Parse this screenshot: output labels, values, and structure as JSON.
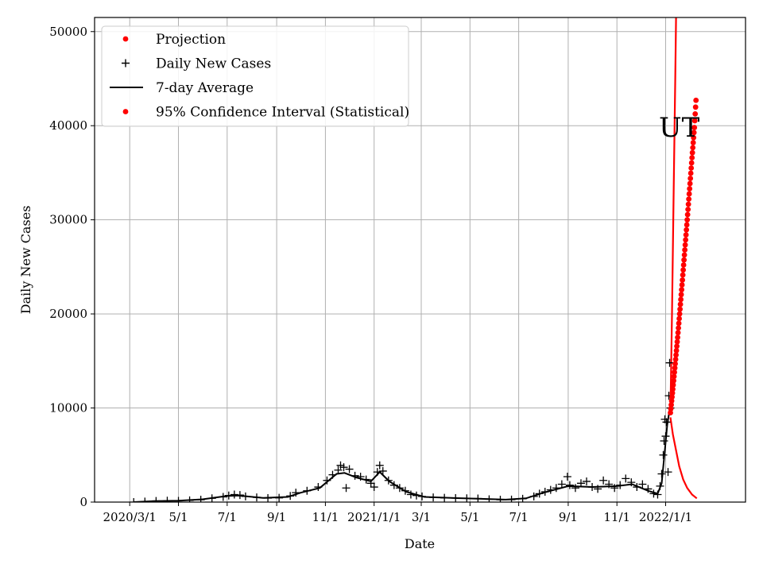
{
  "chart_data": {
    "type": "scatter",
    "title": "",
    "xlabel": "Date",
    "ylabel": "Daily New Cases",
    "xlim": [
      "2020-01-17",
      "2022-04-11"
    ],
    "ylim": [
      0,
      51500
    ],
    "grid": true,
    "legend_position": "top-left",
    "annotation": {
      "text": "UT",
      "x": "2022-01-02",
      "y": 40000
    },
    "x_ticks": [
      {
        "date": "2020-03-01",
        "label": "2020/3/1"
      },
      {
        "date": "2020-05-01",
        "label": "5/1"
      },
      {
        "date": "2020-07-01",
        "label": "7/1"
      },
      {
        "date": "2020-09-01",
        "label": "9/1"
      },
      {
        "date": "2020-11-01",
        "label": "11/1"
      },
      {
        "date": "2021-01-01",
        "label": "2021/1/1"
      },
      {
        "date": "2021-03-01",
        "label": "3/1"
      },
      {
        "date": "2021-05-01",
        "label": "5/1"
      },
      {
        "date": "2021-07-01",
        "label": "7/1"
      },
      {
        "date": "2021-09-01",
        "label": "9/1"
      },
      {
        "date": "2021-11-01",
        "label": "11/1"
      },
      {
        "date": "2022-01-01",
        "label": "2022/1/1"
      }
    ],
    "y_ticks": [
      {
        "value": 0,
        "label": "0"
      },
      {
        "value": 10000,
        "label": "10000"
      },
      {
        "value": 20000,
        "label": "20000"
      },
      {
        "value": 30000,
        "label": "30000"
      },
      {
        "value": 40000,
        "label": "40000"
      },
      {
        "value": 50000,
        "label": "50000"
      }
    ],
    "legend": [
      {
        "label": "Projection",
        "marker": "dot",
        "color": "#ff0000"
      },
      {
        "label": "Daily New Cases",
        "marker": "plus",
        "color": "#000000"
      },
      {
        "label": "7-day Average",
        "marker": "line",
        "color": "#000000"
      },
      {
        "label": "95% Confidence Interval (Statistical)",
        "marker": "dot",
        "color": "#ff0000"
      }
    ],
    "series": [
      {
        "name": "Daily New Cases",
        "style": "plus",
        "color": "#000000",
        "points": [
          [
            "2020-03-06",
            0
          ],
          [
            "2020-03-20",
            50
          ],
          [
            "2020-04-03",
            120
          ],
          [
            "2020-04-17",
            150
          ],
          [
            "2020-05-01",
            130
          ],
          [
            "2020-05-15",
            180
          ],
          [
            "2020-05-29",
            250
          ],
          [
            "2020-06-12",
            400
          ],
          [
            "2020-06-26",
            550
          ],
          [
            "2020-07-03",
            700
          ],
          [
            "2020-07-10",
            800
          ],
          [
            "2020-07-17",
            750
          ],
          [
            "2020-07-24",
            600
          ],
          [
            "2020-08-07",
            500
          ],
          [
            "2020-08-21",
            420
          ],
          [
            "2020-09-04",
            450
          ],
          [
            "2020-09-18",
            650
          ],
          [
            "2020-09-25",
            1000
          ],
          [
            "2020-10-09",
            1200
          ],
          [
            "2020-10-23",
            1600
          ],
          [
            "2020-11-03",
            2300
          ],
          [
            "2020-11-10",
            2900
          ],
          [
            "2020-11-17",
            3400
          ],
          [
            "2020-11-20",
            3900
          ],
          [
            "2020-11-24",
            3700
          ],
          [
            "2020-11-27",
            1500
          ],
          [
            "2020-12-01",
            3500
          ],
          [
            "2020-12-08",
            2800
          ],
          [
            "2020-12-15",
            2700
          ],
          [
            "2020-12-22",
            2400
          ],
          [
            "2020-12-28",
            2000
          ],
          [
            "2021-01-01",
            1600
          ],
          [
            "2021-01-05",
            3200
          ],
          [
            "2021-01-08",
            3900
          ],
          [
            "2021-01-12",
            3300
          ],
          [
            "2021-01-19",
            2300
          ],
          [
            "2021-01-26",
            1800
          ],
          [
            "2021-02-02",
            1500
          ],
          [
            "2021-02-09",
            1200
          ],
          [
            "2021-02-16",
            800
          ],
          [
            "2021-02-23",
            700
          ],
          [
            "2021-03-02",
            600
          ],
          [
            "2021-03-16",
            500
          ],
          [
            "2021-03-30",
            450
          ],
          [
            "2021-04-13",
            420
          ],
          [
            "2021-04-27",
            400
          ],
          [
            "2021-05-11",
            380
          ],
          [
            "2021-05-25",
            300
          ],
          [
            "2021-06-08",
            250
          ],
          [
            "2021-06-22",
            260
          ],
          [
            "2021-07-06",
            350
          ],
          [
            "2021-07-20",
            600
          ],
          [
            "2021-07-27",
            900
          ],
          [
            "2021-08-03",
            1100
          ],
          [
            "2021-08-10",
            1300
          ],
          [
            "2021-08-17",
            1500
          ],
          [
            "2021-08-24",
            1900
          ],
          [
            "2021-08-31",
            2700
          ],
          [
            "2021-09-03",
            1800
          ],
          [
            "2021-09-10",
            1500
          ],
          [
            "2021-09-17",
            2000
          ],
          [
            "2021-09-24",
            2200
          ],
          [
            "2021-10-01",
            1600
          ],
          [
            "2021-10-08",
            1400
          ],
          [
            "2021-10-15",
            2300
          ],
          [
            "2021-10-22",
            1900
          ],
          [
            "2021-10-29",
            1500
          ],
          [
            "2021-11-05",
            1800
          ],
          [
            "2021-11-12",
            2500
          ],
          [
            "2021-11-19",
            2100
          ],
          [
            "2021-11-26",
            1600
          ],
          [
            "2021-12-03",
            1900
          ],
          [
            "2021-12-10",
            1400
          ],
          [
            "2021-12-17",
            900
          ],
          [
            "2021-12-22",
            800
          ],
          [
            "2021-12-25",
            1700
          ],
          [
            "2021-12-27",
            3000
          ],
          [
            "2021-12-29",
            5000
          ],
          [
            "2021-12-30",
            6500
          ],
          [
            "2021-12-31",
            8800
          ],
          [
            "2022-01-01",
            7000
          ],
          [
            "2022-01-02",
            8500
          ],
          [
            "2022-01-04",
            3200
          ],
          [
            "2022-01-05",
            11300
          ],
          [
            "2022-01-06",
            14800
          ],
          [
            "2022-01-07",
            10000
          ]
        ]
      },
      {
        "name": "7-day Average",
        "style": "line",
        "color": "#000000",
        "points": [
          [
            "2020-03-06",
            0
          ],
          [
            "2020-04-01",
            100
          ],
          [
            "2020-05-01",
            150
          ],
          [
            "2020-06-01",
            300
          ],
          [
            "2020-07-01",
            650
          ],
          [
            "2020-07-15",
            700
          ],
          [
            "2020-08-15",
            450
          ],
          [
            "2020-09-15",
            550
          ],
          [
            "2020-10-01",
            1000
          ],
          [
            "2020-10-25",
            1500
          ],
          [
            "2020-11-15",
            3000
          ],
          [
            "2020-11-25",
            3100
          ],
          [
            "2020-12-10",
            2600
          ],
          [
            "2020-12-28",
            2200
          ],
          [
            "2021-01-08",
            3200
          ],
          [
            "2021-01-20",
            2200
          ],
          [
            "2021-02-10",
            1100
          ],
          [
            "2021-03-05",
            550
          ],
          [
            "2021-04-15",
            420
          ],
          [
            "2021-05-15",
            350
          ],
          [
            "2021-06-15",
            260
          ],
          [
            "2021-07-10",
            400
          ],
          [
            "2021-08-01",
            1000
          ],
          [
            "2021-09-01",
            1700
          ],
          [
            "2021-10-01",
            1600
          ],
          [
            "2021-11-01",
            1700
          ],
          [
            "2021-11-20",
            1900
          ],
          [
            "2021-12-10",
            1200
          ],
          [
            "2021-12-22",
            900
          ],
          [
            "2021-12-27",
            2000
          ],
          [
            "2021-12-31",
            5500
          ],
          [
            "2022-01-03",
            8200
          ],
          [
            "2022-01-06",
            9800
          ]
        ]
      }
    ],
    "projection": {
      "name": "Projection",
      "style": "dot",
      "color": "#ff0000",
      "points": [
        [
          "2022-01-07",
          9500
        ],
        [
          "2022-01-10",
          12000
        ],
        [
          "2022-01-13",
          14700
        ],
        [
          "2022-01-16",
          17500
        ],
        [
          "2022-01-19",
          20500
        ],
        [
          "2022-01-22",
          23600
        ],
        [
          "2022-01-25",
          26800
        ],
        [
          "2022-01-28",
          30000
        ],
        [
          "2022-01-31",
          33300
        ],
        [
          "2022-02-03",
          36600
        ],
        [
          "2022-02-06",
          39800
        ],
        [
          "2022-02-08",
          42700
        ]
      ]
    },
    "confidence_interval": {
      "name": "95% Confidence Interval (Statistical)",
      "color": "#ff0000",
      "upper": [
        [
          "2022-01-07",
          9500
        ],
        [
          "2022-01-09",
          20000
        ],
        [
          "2022-01-11",
          33000
        ],
        [
          "2022-01-13",
          45000
        ],
        [
          "2022-01-14",
          51500
        ]
      ],
      "lower": [
        [
          "2022-01-07",
          9000
        ],
        [
          "2022-01-10",
          7200
        ],
        [
          "2022-01-14",
          5500
        ],
        [
          "2022-01-18",
          3800
        ],
        [
          "2022-01-23",
          2400
        ],
        [
          "2022-01-28",
          1500
        ],
        [
          "2022-02-03",
          800
        ],
        [
          "2022-02-09",
          400
        ]
      ]
    }
  }
}
